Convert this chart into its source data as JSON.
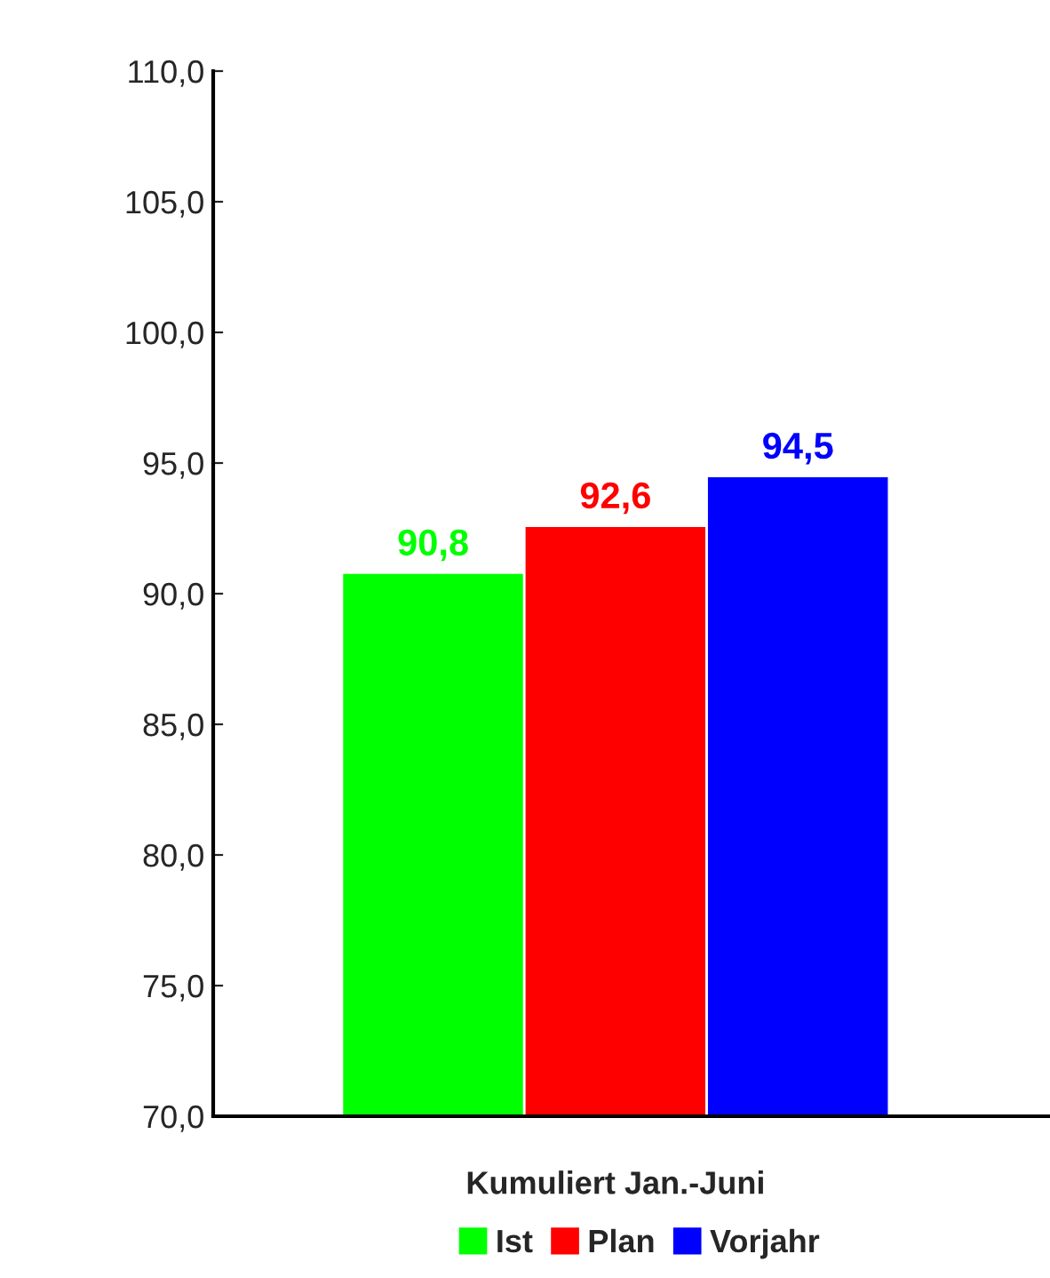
{
  "chart_data": {
    "type": "bar",
    "categories": [
      "Kumuliert Jan.-Juni"
    ],
    "series": [
      {
        "name": "Ist",
        "color": "#00ff00",
        "values": [
          90.8
        ],
        "value_labels": [
          "90,8"
        ]
      },
      {
        "name": "Plan",
        "color": "#ff0000",
        "values": [
          92.6
        ],
        "value_labels": [
          "92,6"
        ]
      },
      {
        "name": "Vorjahr",
        "color": "#0000ff",
        "values": [
          94.5
        ],
        "value_labels": [
          "94,5"
        ]
      }
    ],
    "ylim": [
      70,
      110
    ],
    "yticks": [
      {
        "value": 70,
        "label": "70,0"
      },
      {
        "value": 75,
        "label": "75,0"
      },
      {
        "value": 80,
        "label": "80,0"
      },
      {
        "value": 85,
        "label": "85,0"
      },
      {
        "value": 90,
        "label": "90,0"
      },
      {
        "value": 95,
        "label": "95,0"
      },
      {
        "value": 100,
        "label": "100,0"
      },
      {
        "value": 105,
        "label": "105,0"
      },
      {
        "value": 110,
        "label": "110,0"
      }
    ],
    "grid": false,
    "legend": "bottom"
  }
}
